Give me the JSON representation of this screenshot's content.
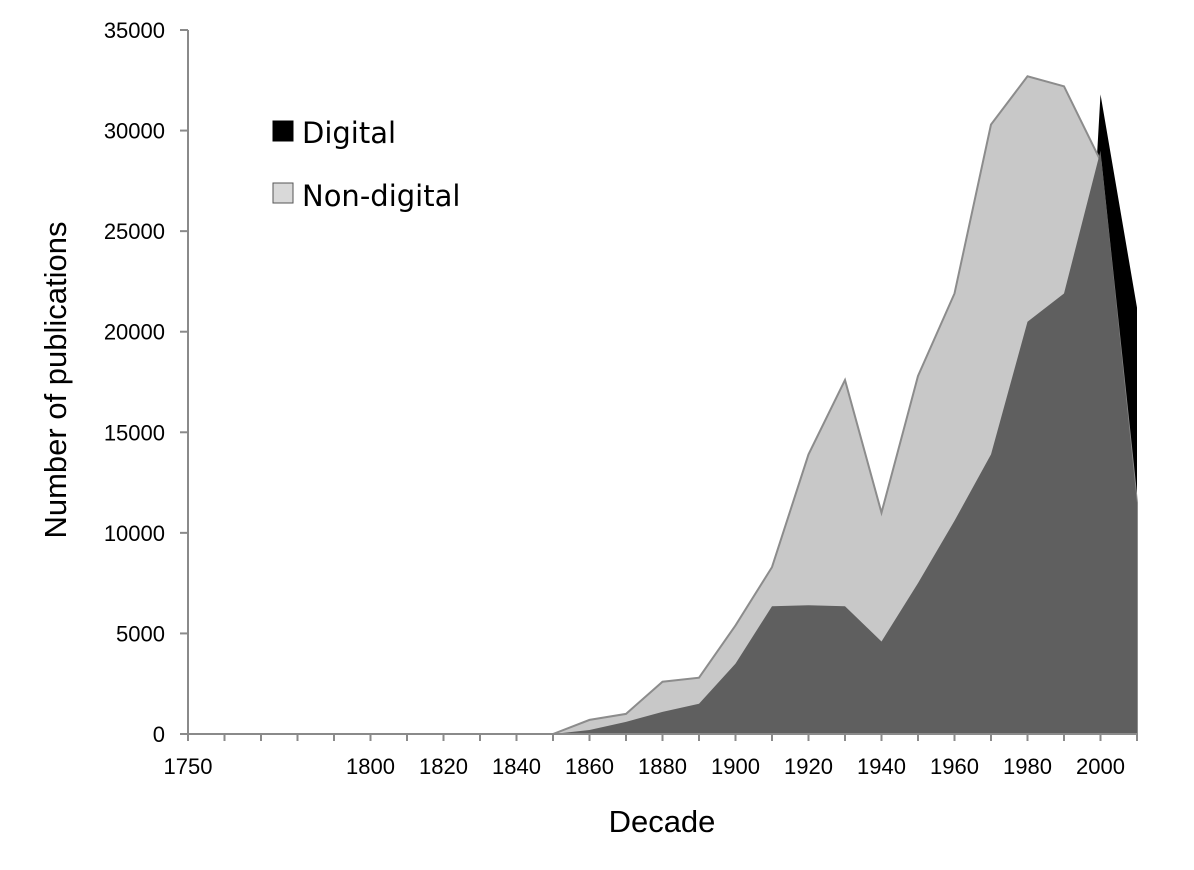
{
  "chart_data": {
    "type": "area",
    "xlabel": "Decade",
    "ylabel": "Number of publications",
    "xlim": [
      1750,
      2010
    ],
    "ylim": [
      0,
      35000
    ],
    "x_tick_labels": [
      "1750",
      "1800",
      "1820",
      "1840",
      "1860",
      "1880",
      "1900",
      "1920",
      "1940",
      "1960",
      "1980",
      "2000"
    ],
    "y_tick_labels": [
      "0",
      "5000",
      "10000",
      "15000",
      "20000",
      "25000",
      "30000",
      "35000"
    ],
    "x": [
      1750,
      1760,
      1770,
      1780,
      1790,
      1800,
      1810,
      1820,
      1830,
      1840,
      1850,
      1860,
      1870,
      1880,
      1890,
      1900,
      1910,
      1920,
      1930,
      1940,
      1950,
      1960,
      1970,
      1980,
      1990,
      2000,
      2010
    ],
    "grid": false,
    "legend_position": "top-left",
    "legend": [
      {
        "label": "Digital",
        "color": "#000000"
      },
      {
        "label": "Non-digital",
        "color": "#d9d9d9"
      }
    ],
    "series": [
      {
        "color": "#5f5f5f",
        "values": [
          0,
          0,
          0,
          0,
          0,
          0,
          0,
          0,
          0,
          0,
          0,
          200,
          600,
          1100,
          1500,
          3500,
          6350,
          6400,
          6350,
          4600,
          7500,
          10600,
          13900,
          20500,
          21900,
          29000,
          11500
        ]
      },
      {
        "color": "#c8c8c8",
        "values": [
          0,
          0,
          0,
          0,
          0,
          0,
          0,
          0,
          0,
          0,
          0,
          700,
          1000,
          2600,
          2800,
          5400,
          8300,
          13900,
          17600,
          11000,
          17800,
          21900,
          30300,
          32700,
          32200,
          28500,
          11500
        ]
      },
      {
        "color": "#000000",
        "values": [
          0,
          0,
          0,
          0,
          0,
          0,
          0,
          0,
          0,
          0,
          0,
          0,
          0,
          0,
          0,
          0,
          0,
          0,
          0,
          0,
          0,
          0,
          0,
          0,
          0,
          31800,
          21200
        ]
      }
    ]
  }
}
